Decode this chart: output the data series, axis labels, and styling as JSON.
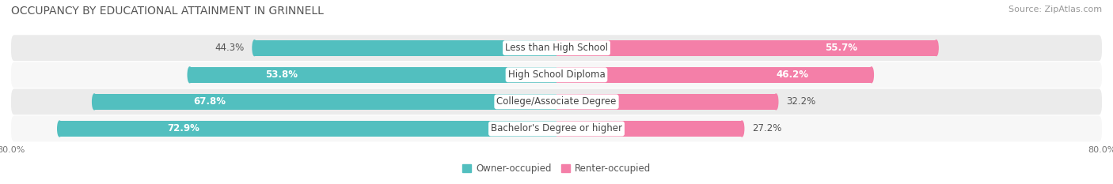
{
  "title": "OCCUPANCY BY EDUCATIONAL ATTAINMENT IN GRINNELL",
  "source": "Source: ZipAtlas.com",
  "categories": [
    "Less than High School",
    "High School Diploma",
    "College/Associate Degree",
    "Bachelor's Degree or higher"
  ],
  "owner_values": [
    44.3,
    53.8,
    67.8,
    72.9
  ],
  "renter_values": [
    55.7,
    46.2,
    32.2,
    27.2
  ],
  "owner_color": "#52bfbf",
  "renter_color": "#f47fa8",
  "owner_color_light": "#a8e0e0",
  "renter_color_light": "#f9c0d4",
  "row_bg_color_dark": "#e8e8e8",
  "row_bg_color_light": "#f5f5f5",
  "xlim_left": -80.0,
  "xlim_right": 80.0,
  "legend_owner": "Owner-occupied",
  "legend_renter": "Renter-occupied",
  "title_fontsize": 10,
  "source_fontsize": 8,
  "label_fontsize": 8.5,
  "pct_fontsize": 8.5,
  "bar_height": 0.58,
  "figsize": [
    14.06,
    2.33
  ],
  "dpi": 100
}
